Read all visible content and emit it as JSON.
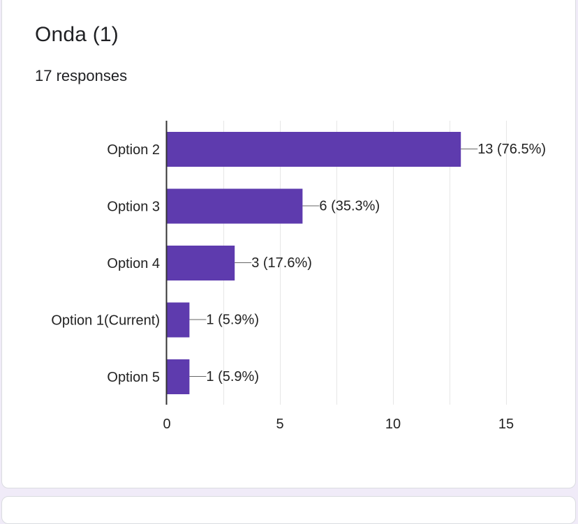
{
  "question": {
    "title": "Onda (1)",
    "responses": "17 responses"
  },
  "colors": {
    "bar": "#5e3bae",
    "grid": "#e6e6e6",
    "axis": "#333333",
    "leader": "#666666"
  },
  "chart_data": {
    "type": "bar",
    "orientation": "horizontal",
    "categories": [
      "Option 2",
      "Option 3",
      "Option 4",
      "Option 1(Current)",
      "Option 5"
    ],
    "values": [
      13,
      6,
      3,
      1,
      1
    ],
    "data_labels": [
      "13 (76.5%)",
      "6 (35.3%)",
      "3 (17.6%)",
      "1 (5.9%)",
      "1 (5.9%)"
    ],
    "x_ticks": [
      0,
      5,
      10,
      15
    ],
    "xlim": [
      0,
      15
    ],
    "grid": true,
    "minor_gridlines": true
  }
}
